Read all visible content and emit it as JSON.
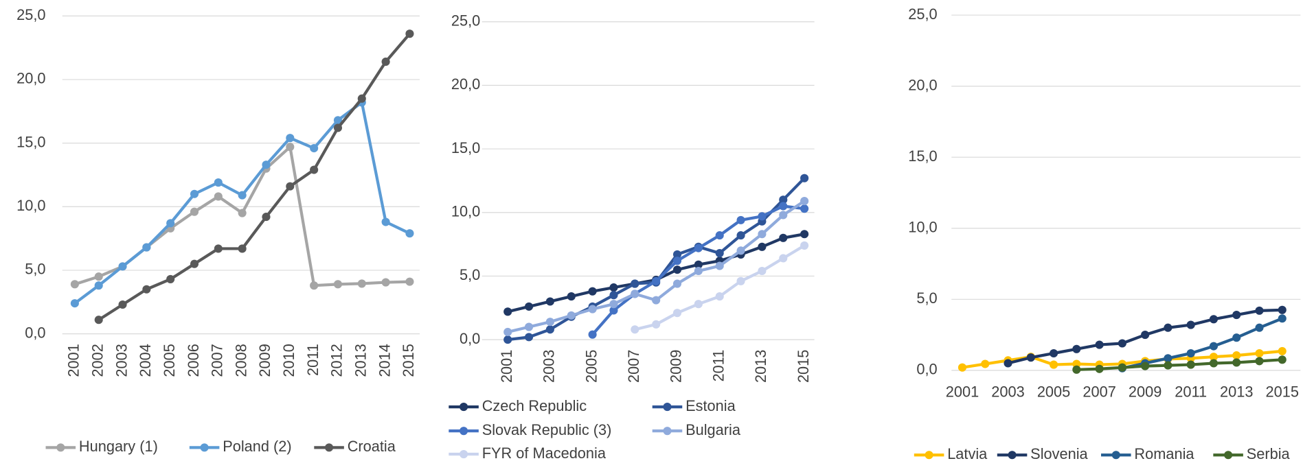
{
  "chart_data": [
    {
      "type": "line",
      "x": [
        2001,
        2002,
        2003,
        2004,
        2005,
        2006,
        2007,
        2008,
        2009,
        2010,
        2011,
        2012,
        2013,
        2014,
        2015
      ],
      "xticks": [
        2001,
        2002,
        2003,
        2004,
        2005,
        2006,
        2007,
        2008,
        2009,
        2010,
        2011,
        2012,
        2013,
        2014,
        2015
      ],
      "ylim": [
        0,
        25
      ],
      "yticks": [
        {
          "value": 0,
          "label": "0,0"
        },
        {
          "value": 5,
          "label": "5,0"
        },
        {
          "value": 10,
          "label": "10,0"
        },
        {
          "value": 15,
          "label": "15,0"
        },
        {
          "value": 20,
          "label": "20,0"
        },
        {
          "value": 25,
          "label": "25,0"
        }
      ],
      "grid": true,
      "legend": "bottom",
      "series": [
        {
          "name": "Hungary (1)",
          "color": "#a5a5a5",
          "values": [
            3.9,
            4.5,
            5.3,
            6.8,
            8.3,
            9.6,
            10.8,
            9.5,
            13.0,
            14.7,
            3.8,
            3.9,
            3.95,
            4.05,
            4.1
          ]
        },
        {
          "name": "Poland (2)",
          "color": "#5b9bd5",
          "values": [
            2.4,
            3.8,
            5.3,
            6.8,
            8.7,
            11.0,
            11.9,
            10.9,
            13.3,
            15.4,
            14.6,
            16.8,
            18.2,
            8.8,
            7.9
          ]
        },
        {
          "name": "Croatia",
          "color": "#595959",
          "values": [
            null,
            1.1,
            2.3,
            3.5,
            4.3,
            5.5,
            6.7,
            6.7,
            9.2,
            11.6,
            12.9,
            16.2,
            18.5,
            21.4,
            23.6
          ]
        }
      ]
    },
    {
      "type": "line",
      "x": [
        2001,
        2002,
        2003,
        2004,
        2005,
        2006,
        2007,
        2008,
        2009,
        2010,
        2011,
        2012,
        2013,
        2014,
        2015
      ],
      "xticks": [
        2001,
        2003,
        2005,
        2007,
        2009,
        2011,
        2013,
        2015
      ],
      "ylim": [
        0,
        25
      ],
      "yticks": [
        {
          "value": 0,
          "label": "0,0"
        },
        {
          "value": 5,
          "label": "5,0"
        },
        {
          "value": 10,
          "label": "10,0"
        },
        {
          "value": 15,
          "label": "15,0"
        },
        {
          "value": 20,
          "label": "20,0"
        },
        {
          "value": 25,
          "label": "25,0"
        }
      ],
      "grid": true,
      "legend": "bottom",
      "series": [
        {
          "name": "Czech Republic",
          "color": "#203864",
          "values": [
            2.2,
            2.6,
            3.0,
            3.4,
            3.8,
            4.1,
            4.4,
            4.7,
            5.5,
            5.9,
            6.2,
            6.7,
            7.3,
            8.0,
            8.3
          ]
        },
        {
          "name": "Estonia",
          "color": "#2f5597",
          "values": [
            0.0,
            0.2,
            0.8,
            1.8,
            2.6,
            3.5,
            4.4,
            4.5,
            6.7,
            7.3,
            6.8,
            8.2,
            9.3,
            11.0,
            12.7
          ]
        },
        {
          "name": "Slovak Republic (3)",
          "color": "#4472c4",
          "values": [
            null,
            null,
            null,
            null,
            0.4,
            2.3,
            3.6,
            4.6,
            6.2,
            7.2,
            8.2,
            9.4,
            9.7,
            10.5,
            10.3
          ]
        },
        {
          "name": "Bulgaria",
          "color": "#8faadc",
          "values": [
            0.6,
            1.0,
            1.4,
            1.9,
            2.4,
            2.8,
            3.6,
            3.1,
            4.4,
            5.4,
            5.8,
            7.0,
            8.3,
            9.8,
            10.9
          ]
        },
        {
          "name": "FYR of Macedonia",
          "color": "#c9d3ee",
          "values": [
            null,
            null,
            null,
            null,
            null,
            null,
            0.8,
            1.2,
            2.1,
            2.8,
            3.4,
            4.6,
            5.4,
            6.4,
            7.4
          ]
        }
      ]
    },
    {
      "type": "line",
      "x": [
        2001,
        2002,
        2003,
        2004,
        2005,
        2006,
        2007,
        2008,
        2009,
        2010,
        2011,
        2012,
        2013,
        2014,
        2015
      ],
      "xticks": [
        2001,
        2003,
        2005,
        2007,
        2009,
        2011,
        2013,
        2015
      ],
      "ylim": [
        0,
        25
      ],
      "yticks": [
        {
          "value": 0,
          "label": "0,0"
        },
        {
          "value": 5,
          "label": "5,0"
        },
        {
          "value": 10,
          "label": "10,0"
        },
        {
          "value": 15,
          "label": "15,0"
        },
        {
          "value": 20,
          "label": "20,0"
        },
        {
          "value": 25,
          "label": "25,0"
        }
      ],
      "grid": true,
      "legend": "bottom",
      "series": [
        {
          "name": "Latvia",
          "color": "#ffc000",
          "values": [
            0.2,
            0.45,
            0.7,
            0.95,
            0.4,
            0.45,
            0.4,
            0.45,
            0.65,
            0.8,
            0.85,
            0.95,
            1.05,
            1.2,
            1.35
          ]
        },
        {
          "name": "Slovenia",
          "color": "#203864",
          "values": [
            null,
            null,
            0.5,
            0.9,
            1.2,
            1.5,
            1.8,
            1.9,
            2.5,
            3.0,
            3.2,
            3.6,
            3.9,
            4.2,
            4.25
          ]
        },
        {
          "name": "Romania",
          "color": "#255e91",
          "values": [
            null,
            null,
            null,
            null,
            null,
            null,
            null,
            0.15,
            0.5,
            0.85,
            1.2,
            1.7,
            2.3,
            3.0,
            3.65
          ]
        },
        {
          "name": "Serbia",
          "color": "#43682b",
          "values": [
            null,
            null,
            null,
            null,
            null,
            0.05,
            0.1,
            0.2,
            0.3,
            0.35,
            0.4,
            0.5,
            0.55,
            0.65,
            0.75
          ]
        }
      ]
    }
  ]
}
